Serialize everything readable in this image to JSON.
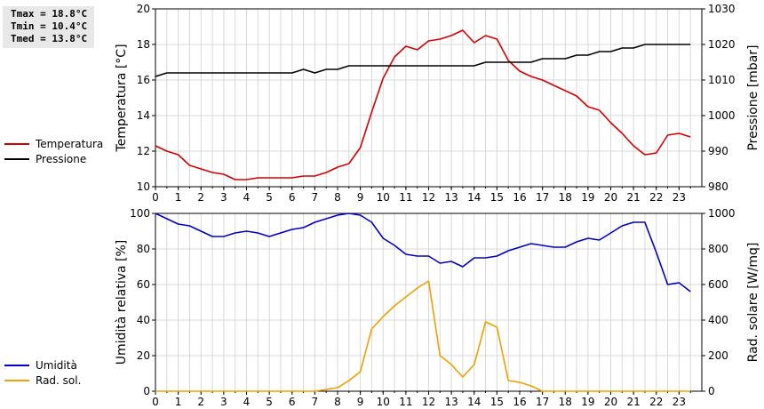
{
  "stats": {
    "tmax": "Tmax = 18.8°C",
    "tmin": "Tmin = 10.4°C",
    "tmed": "Tmed = 13.8°C"
  },
  "colors": {
    "temperature": "#d40000",
    "pressure": "#000000",
    "humidity": "#0000c8",
    "radiation": "#f0a000",
    "grid": "#d8d8d8"
  },
  "chart_data": [
    {
      "type": "line",
      "title": "",
      "xlabel": "",
      "xlim": [
        0,
        24
      ],
      "x_ticks": [
        0,
        1,
        2,
        3,
        4,
        5,
        6,
        7,
        8,
        9,
        10,
        11,
        12,
        13,
        14,
        15,
        16,
        17,
        18,
        19,
        20,
        21,
        22,
        23
      ],
      "grid": true,
      "legend_position": "left",
      "y_left": {
        "label": "Temperatura [°C]",
        "ylim": [
          10,
          20
        ],
        "ticks": [
          10,
          12,
          14,
          16,
          18,
          20
        ]
      },
      "y_right": {
        "label": "Pressione [mbar]",
        "ylim": [
          980,
          1030
        ],
        "ticks": [
          980,
          990,
          1000,
          1010,
          1020,
          1030
        ]
      },
      "series": [
        {
          "name": "Temperatura",
          "axis": "left",
          "color": "#d40000",
          "x": [
            0,
            0.5,
            1,
            1.5,
            2,
            2.5,
            3,
            3.5,
            4,
            4.5,
            5,
            5.5,
            6,
            6.5,
            7,
            7.5,
            8,
            8.5,
            9,
            9.5,
            10,
            10.5,
            11,
            11.5,
            12,
            12.5,
            13,
            13.5,
            14,
            14.5,
            15,
            15.5,
            16,
            16.5,
            17,
            17.5,
            18,
            18.5,
            19,
            19.5,
            20,
            20.5,
            21,
            21.5,
            22,
            22.5,
            23,
            23.5
          ],
          "y": [
            12.3,
            12.0,
            11.8,
            11.2,
            11.0,
            10.8,
            10.7,
            10.4,
            10.4,
            10.5,
            10.5,
            10.5,
            10.5,
            10.6,
            10.6,
            10.8,
            11.1,
            11.3,
            12.2,
            14.2,
            16.1,
            17.3,
            17.9,
            17.7,
            18.2,
            18.3,
            18.5,
            18.8,
            18.1,
            18.5,
            18.3,
            17.1,
            16.5,
            16.2,
            16.0,
            15.7,
            15.4,
            15.1,
            14.5,
            14.3,
            13.6,
            13.0,
            12.3,
            11.8,
            11.9,
            12.9,
            13.0,
            12.8
          ]
        },
        {
          "name": "Pressione",
          "axis": "right",
          "color": "#000000",
          "x": [
            0,
            0.5,
            1,
            1.5,
            2,
            2.5,
            3,
            3.5,
            4,
            4.5,
            5,
            5.5,
            6,
            6.5,
            7,
            7.5,
            8,
            8.5,
            9,
            9.5,
            10,
            10.5,
            11,
            11.5,
            12,
            12.5,
            13,
            13.5,
            14,
            14.5,
            15,
            15.5,
            16,
            16.5,
            17,
            17.5,
            18,
            18.5,
            19,
            19.5,
            20,
            20.5,
            21,
            21.5,
            22,
            22.5,
            23,
            23.5
          ],
          "y": [
            1011,
            1012,
            1012,
            1012,
            1012,
            1012,
            1012,
            1012,
            1012,
            1012,
            1012,
            1012,
            1012,
            1013,
            1012,
            1013,
            1013,
            1014,
            1014,
            1014,
            1014,
            1014,
            1014,
            1014,
            1014,
            1014,
            1014,
            1014,
            1014,
            1015,
            1015,
            1015,
            1015,
            1015,
            1016,
            1016,
            1016,
            1017,
            1017,
            1018,
            1018,
            1019,
            1019,
            1020,
            1020,
            1020,
            1020,
            1020
          ]
        }
      ]
    },
    {
      "type": "line",
      "title": "",
      "xlabel": "",
      "xlim": [
        0,
        24
      ],
      "x_ticks": [
        0,
        1,
        2,
        3,
        4,
        5,
        6,
        7,
        8,
        9,
        10,
        11,
        12,
        13,
        14,
        15,
        16,
        17,
        18,
        19,
        20,
        21,
        22,
        23
      ],
      "grid": true,
      "legend_position": "left",
      "y_left": {
        "label": "Umidità relativa [%]",
        "ylim": [
          0,
          100
        ],
        "ticks": [
          0,
          20,
          40,
          60,
          80,
          100
        ]
      },
      "y_right": {
        "label": "Rad. solare [W/mq]",
        "ylim": [
          0,
          1000
        ],
        "ticks": [
          0,
          200,
          400,
          600,
          800,
          1000
        ]
      },
      "series": [
        {
          "name": "Umidità",
          "axis": "left",
          "color": "#0000c8",
          "x": [
            0,
            0.5,
            1,
            1.5,
            2,
            2.5,
            3,
            3.5,
            4,
            4.5,
            5,
            5.5,
            6,
            6.5,
            7,
            7.5,
            8,
            8.5,
            9,
            9.5,
            10,
            10.5,
            11,
            11.5,
            12,
            12.5,
            13,
            13.5,
            14,
            14.5,
            15,
            15.5,
            16,
            16.5,
            17,
            17.5,
            18,
            18.5,
            19,
            19.5,
            20,
            20.5,
            21,
            21.5,
            22,
            22.5,
            23,
            23.5
          ],
          "y": [
            100,
            97,
            94,
            93,
            90,
            87,
            87,
            89,
            90,
            89,
            87,
            89,
            91,
            92,
            95,
            97,
            99,
            100,
            99,
            95,
            86,
            82,
            77,
            76,
            76,
            72,
            73,
            70,
            75,
            75,
            76,
            79,
            81,
            83,
            82,
            81,
            81,
            84,
            86,
            85,
            89,
            93,
            95,
            95,
            78,
            60,
            61,
            56
          ]
        },
        {
          "name": "Rad. sol.",
          "axis": "right",
          "color": "#f0a000",
          "x": [
            0,
            0.5,
            1,
            1.5,
            2,
            2.5,
            3,
            3.5,
            4,
            4.5,
            5,
            5.5,
            6,
            6.5,
            7,
            7.5,
            8,
            8.5,
            9,
            9.5,
            10,
            10.5,
            11,
            11.5,
            12,
            12.5,
            13,
            13.5,
            14,
            14.5,
            15,
            15.5,
            16,
            16.5,
            17,
            17.5,
            18,
            18.5,
            19,
            19.5,
            20,
            20.5,
            21,
            21.5,
            22,
            22.5,
            23,
            23.5
          ],
          "y": [
            0,
            0,
            0,
            0,
            0,
            0,
            0,
            0,
            0,
            0,
            0,
            0,
            0,
            0,
            0,
            10,
            20,
            60,
            110,
            350,
            420,
            480,
            530,
            580,
            620,
            200,
            150,
            80,
            150,
            390,
            360,
            60,
            50,
            30,
            0,
            0,
            0,
            0,
            0,
            0,
            0,
            0,
            0,
            0,
            0,
            0,
            0,
            0
          ]
        }
      ]
    }
  ]
}
